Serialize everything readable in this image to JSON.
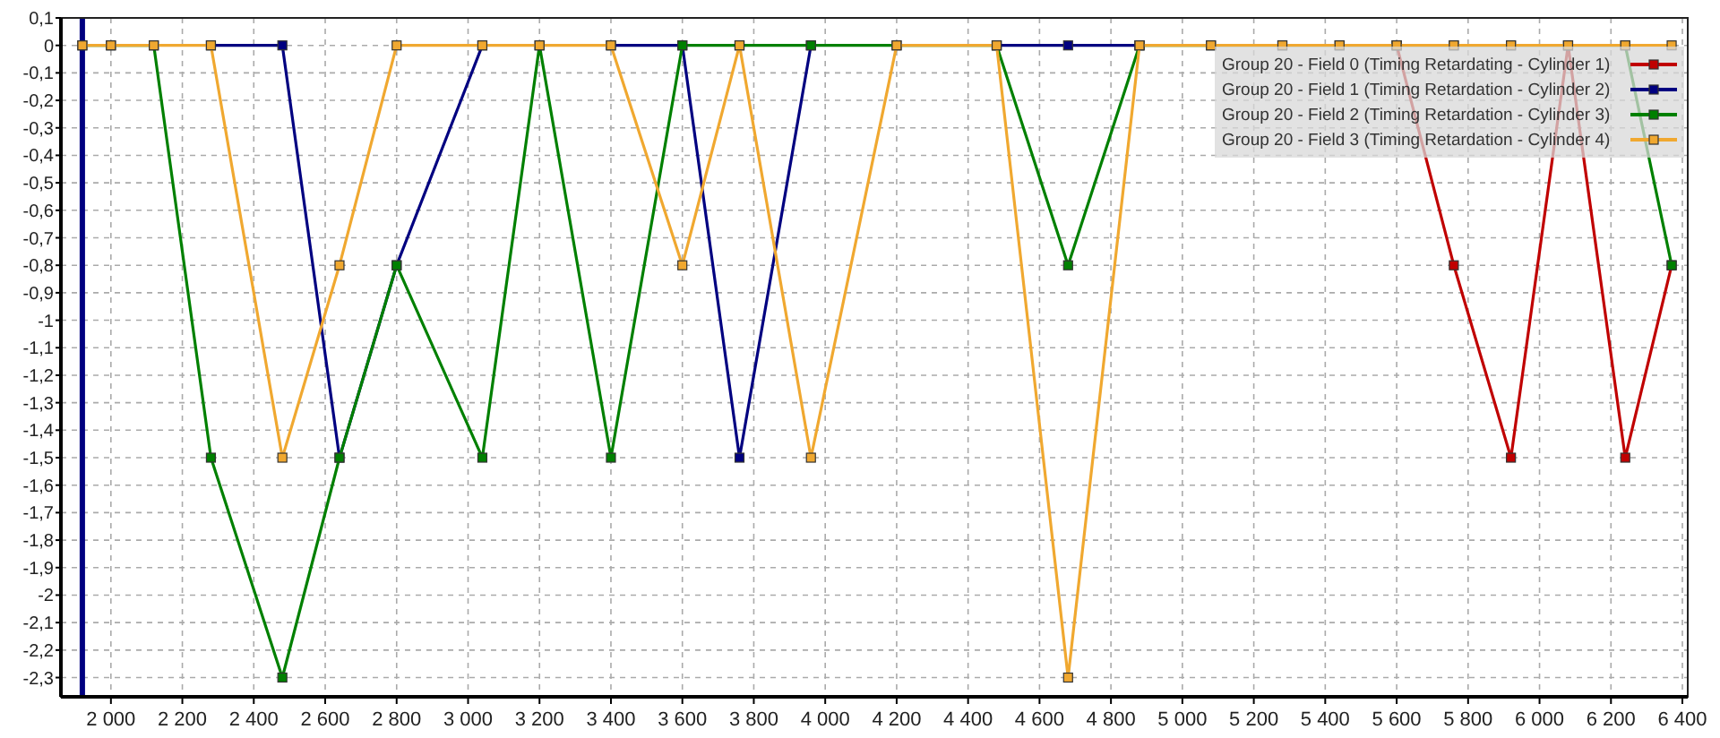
{
  "chart_data": {
    "type": "line",
    "x": [
      1920,
      2000,
      2120,
      2280,
      2480,
      2640,
      2800,
      3040,
      3200,
      3400,
      3600,
      3760,
      3960,
      4200,
      4480,
      4680,
      4880,
      5080,
      5280,
      5440,
      5600,
      5760,
      5920,
      6080,
      6240,
      6370
    ],
    "series": [
      {
        "name": "Group 20 - Field 0 (Timing Retardating - Cylinder 1)",
        "color": "#c00000",
        "values": [
          null,
          null,
          null,
          null,
          null,
          null,
          null,
          null,
          null,
          null,
          null,
          null,
          null,
          null,
          null,
          null,
          null,
          null,
          null,
          null,
          0,
          -0.8,
          -1.5,
          0,
          -1.5,
          -0.8
        ]
      },
      {
        "name": "Group 20 - Field 1 (Timing Retardation - Cylinder 2)",
        "color": "#000080",
        "values": [
          null,
          null,
          null,
          0,
          0,
          -1.5,
          -0.8,
          0,
          null,
          0,
          0,
          -1.5,
          0,
          null,
          0,
          0,
          0,
          null,
          null,
          null,
          null,
          null,
          null,
          null,
          null,
          null
        ]
      },
      {
        "name": "Group 20 - Field 2 (Timing Retardation - Cylinder 3)",
        "color": "#008000",
        "values": [
          0,
          0,
          0,
          -1.5,
          -2.3,
          -1.5,
          -0.8,
          -1.5,
          0,
          -1.5,
          0,
          0,
          0,
          0,
          0,
          -0.8,
          0,
          0,
          0,
          0,
          0,
          0,
          0,
          0,
          0,
          -0.8
        ]
      },
      {
        "name": "Group 20 - Field 3 (Timing Retardation - Cylinder 4)",
        "color": "#f0a830",
        "values": [
          0,
          0,
          0,
          0,
          -1.5,
          -0.8,
          0,
          0,
          0,
          0,
          -0.8,
          0,
          -1.5,
          0,
          0,
          -2.3,
          0,
          0,
          0,
          0,
          0,
          0,
          0,
          0,
          0,
          0
        ]
      }
    ],
    "xlim": [
      1860,
      6415
    ],
    "ylim": [
      -2.37,
      0.1
    ],
    "xticks": [
      {
        "value": 2000,
        "label": "2 000"
      },
      {
        "value": 2200,
        "label": "2 200"
      },
      {
        "value": 2400,
        "label": "2 400"
      },
      {
        "value": 2600,
        "label": "2 600"
      },
      {
        "value": 2800,
        "label": "2 800"
      },
      {
        "value": 3000,
        "label": "3 000"
      },
      {
        "value": 3200,
        "label": "3 200"
      },
      {
        "value": 3400,
        "label": "3 400"
      },
      {
        "value": 3600,
        "label": "3 600"
      },
      {
        "value": 3800,
        "label": "3 800"
      },
      {
        "value": 4000,
        "label": "4 000"
      },
      {
        "value": 4200,
        "label": "4 200"
      },
      {
        "value": 4400,
        "label": "4 400"
      },
      {
        "value": 4600,
        "label": "4 600"
      },
      {
        "value": 4800,
        "label": "4 800"
      },
      {
        "value": 5000,
        "label": "5 000"
      },
      {
        "value": 5200,
        "label": "5 200"
      },
      {
        "value": 5400,
        "label": "5 400"
      },
      {
        "value": 5600,
        "label": "5 600"
      },
      {
        "value": 5800,
        "label": "5 800"
      },
      {
        "value": 6000,
        "label": "6 000"
      },
      {
        "value": 6200,
        "label": "6 200"
      },
      {
        "value": 6400,
        "label": "6 400"
      }
    ],
    "yticks": [
      {
        "value": 0.1,
        "label": "0,1"
      },
      0,
      {
        "value": -0.1,
        "label": "-0,1"
      },
      {
        "value": -0.2,
        "label": "-0,2"
      },
      {
        "value": -0.3,
        "label": "-0,3"
      },
      {
        "value": -0.4,
        "label": "-0,4"
      },
      {
        "value": -0.5,
        "label": "-0,5"
      },
      {
        "value": -0.6,
        "label": "-0,6"
      },
      {
        "value": -0.7,
        "label": "-0,7"
      },
      {
        "value": -0.8,
        "label": "-0,8"
      },
      {
        "value": -0.9,
        "label": "-0,9"
      },
      -1,
      {
        "value": -1.1,
        "label": "-1,1"
      },
      {
        "value": -1.2,
        "label": "-1,2"
      },
      {
        "value": -1.3,
        "label": "-1,3"
      },
      {
        "value": -1.4,
        "label": "-1,4"
      },
      {
        "value": -1.5,
        "label": "-1,5"
      },
      {
        "value": -1.6,
        "label": "-1,6"
      },
      {
        "value": -1.7,
        "label": "-1,7"
      },
      {
        "value": -1.8,
        "label": "-1,8"
      },
      {
        "value": -1.9,
        "label": "-1,9"
      },
      -2,
      {
        "value": -2.1,
        "label": "-2,1"
      },
      {
        "value": -2.2,
        "label": "-2,2"
      },
      {
        "value": -2.3,
        "label": "-2,3"
      }
    ],
    "ref_lines": [
      {
        "axis": "x",
        "value": 1920,
        "color": "#000080"
      }
    ],
    "grid": true,
    "legend": "top right",
    "marker": "square",
    "line_style": "solid"
  }
}
